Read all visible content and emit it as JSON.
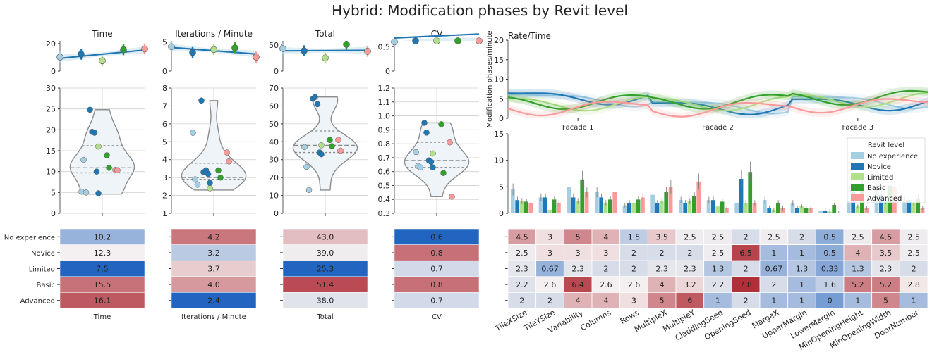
{
  "title": "Hybrid: Modification phases by Revit level",
  "levels": [
    "No experience",
    "Novice",
    "Limited",
    "Basic",
    "Advanced"
  ],
  "level_colors": [
    "#a6cee3",
    "#1f78b4",
    "#b2df8a",
    "#33a02c",
    "#fb9a99"
  ],
  "chart_data": [
    {
      "type": "scatter",
      "panel": "trend",
      "title": "Time",
      "ylim": [
        0,
        22
      ],
      "yticks": [
        "0",
        "20"
      ],
      "means": [
        10.2,
        12.3,
        7.5,
        15.5,
        16.1
      ]
    },
    {
      "type": "scatter",
      "panel": "trend",
      "title": "Iterations / Minute",
      "ylim": [
        0,
        5.2
      ],
      "yticks": [
        "0",
        "5"
      ],
      "means": [
        4.2,
        3.2,
        3.7,
        4.0,
        2.4
      ]
    },
    {
      "type": "scatter",
      "panel": "trend",
      "title": "Total",
      "ylim": [
        0,
        58
      ],
      "yticks": [
        "0",
        "50"
      ],
      "means": [
        43.0,
        39.0,
        25.3,
        51.4,
        38.0
      ]
    },
    {
      "type": "scatter",
      "panel": "trend",
      "title": "CV",
      "ylim": [
        0,
        0.62
      ],
      "yticks": [
        "0",
        "0.5"
      ],
      "means": [
        0.6,
        0.8,
        0.7,
        0.8,
        0.7
      ]
    },
    {
      "type": "scatter",
      "panel": "violin",
      "title": "Time",
      "ylim": [
        0,
        30
      ],
      "yticks": [
        "0",
        "5",
        "10",
        "15",
        "20",
        "25",
        "30"
      ],
      "points": [
        {
          "level": 0,
          "values": [
            5.2,
            12.8,
            5.0
          ]
        },
        {
          "level": 1,
          "values": [
            24.8,
            19.5,
            19.3,
            10.0,
            4.8
          ]
        },
        {
          "level": 2,
          "values": [
            16.0
          ]
        },
        {
          "level": 3,
          "values": [
            13.9,
            10.9
          ]
        },
        {
          "level": 4,
          "values": [
            10.4,
            10.3
          ]
        }
      ],
      "violin_range": [
        4.6,
        24.8
      ],
      "quartiles": [
        9.7,
        10.9,
        16.2
      ]
    },
    {
      "type": "scatter",
      "panel": "violin",
      "title": "Iterations / Minute",
      "ylim": [
        1,
        8
      ],
      "yticks": [
        "1",
        "2",
        "3",
        "4",
        "5",
        "6",
        "7",
        "8"
      ],
      "points": [
        {
          "level": 0,
          "values": [
            5.5,
            2.9,
            2.6
          ]
        },
        {
          "level": 1,
          "values": [
            7.3,
            3.3,
            3.4,
            3.2,
            2.7
          ]
        },
        {
          "level": 2,
          "values": [
            2.4
          ]
        },
        {
          "level": 3,
          "values": [
            3.4,
            3.0
          ]
        },
        {
          "level": 4,
          "values": [
            4.4,
            3.9
          ]
        }
      ],
      "violin_range": [
        2.3,
        7.3
      ],
      "quartiles": [
        2.9,
        3.0,
        3.8
      ]
    },
    {
      "type": "scatter",
      "panel": "violin",
      "title": "Total",
      "ylim": [
        0,
        70
      ],
      "yticks": [
        "0",
        "10",
        "20",
        "30",
        "40",
        "50",
        "60",
        "70"
      ],
      "points": [
        {
          "level": 0,
          "values": [
            37.0,
            26.0,
            13.0
          ]
        },
        {
          "level": 1,
          "values": [
            64.0,
            65.0,
            61.0,
            34.0,
            33.0
          ]
        },
        {
          "level": 2,
          "values": [
            38.0
          ]
        },
        {
          "level": 3,
          "values": [
            41.0,
            37.5
          ]
        },
        {
          "level": 4,
          "values": [
            41.0,
            35.0
          ]
        }
      ],
      "violin_range": [
        13.0,
        65.0
      ],
      "quartiles": [
        34.0,
        38.0,
        46.0
      ]
    },
    {
      "type": "scatter",
      "panel": "violin",
      "title": "CV",
      "ylim": [
        0.3,
        1.2
      ],
      "yticks": [
        "0.3",
        "0.4",
        "0.5",
        "0.6",
        "0.7",
        "0.8",
        "0.9",
        "1.0",
        "1.1",
        "1.2"
      ],
      "points": [
        {
          "level": 0,
          "values": [
            0.74,
            0.64,
            0.63
          ]
        },
        {
          "level": 1,
          "values": [
            0.95,
            0.88,
            0.68,
            0.67,
            0.63
          ]
        },
        {
          "level": 2,
          "values": [
            0.73
          ]
        },
        {
          "level": 3,
          "values": [
            0.94,
            0.59
          ]
        },
        {
          "level": 4,
          "values": [
            0.81,
            0.42
          ]
        }
      ],
      "violin_range": [
        0.42,
        0.95
      ],
      "quartiles": [
        0.63,
        0.68,
        0.81
      ]
    },
    {
      "type": "heatmap",
      "panel": "metric_heatmap",
      "columns": [
        "Time",
        "Iterations / Minute",
        "Total",
        "CV"
      ],
      "rows": [
        "No experience",
        "Novice",
        "Limited",
        "Basic",
        "Advanced"
      ],
      "values": [
        [
          "10.2",
          "4.2",
          "43.0",
          "0.6"
        ],
        [
          "12.3",
          "3.2",
          "39.0",
          "0.8"
        ],
        [
          "7.5",
          "3.7",
          "25.3",
          "0.7"
        ],
        [
          "15.5",
          "4.0",
          "51.4",
          "0.8"
        ],
        [
          "16.1",
          "2.4",
          "38.0",
          "0.7"
        ]
      ]
    },
    {
      "type": "line",
      "panel": "rate_time",
      "title": "Rate/Time",
      "ylabel": "Modification phases/minute",
      "ylim": [
        0,
        20
      ],
      "yticks": [
        "0",
        "5",
        "10",
        "15",
        "20"
      ],
      "categories": [
        "Facade 1",
        "Facade 2",
        "Facade 3"
      ]
    },
    {
      "type": "bar",
      "panel": "parameter_bars",
      "ylim": [
        0,
        15
      ],
      "yticks": [
        "0",
        "5",
        "10",
        "15"
      ],
      "legend_title": "Revit level",
      "legend_position": "upper-right",
      "categories": [
        "TileXSize",
        "TileYSize",
        "Variability",
        "Columns",
        "Rows",
        "MultipleX",
        "MultipleY",
        "CladdingSeed",
        "OpeningSeed",
        "MargeX",
        "UpperMargin",
        "LowerMargin",
        "MinOpeningHeight",
        "MinOpeningWidth",
        "DoorNumber"
      ],
      "series": [
        {
          "name": "No experience",
          "values": [
            4.5,
            3,
            5,
            4,
            1.5,
            3.5,
            2.5,
            2.5,
            2,
            2.5,
            2,
            0.5,
            2.5,
            4.5,
            2.5
          ]
        },
        {
          "name": "Novice",
          "values": [
            2.5,
            3,
            3,
            3,
            2,
            2,
            2,
            2.5,
            6.5,
            1,
            1,
            0.5,
            4,
            3.5,
            2.5
          ]
        },
        {
          "name": "Limited",
          "values": [
            2.3,
            0.67,
            2.3,
            2,
            2,
            2.3,
            2.3,
            1.3,
            2,
            0.67,
            1.3,
            0.33,
            1.3,
            2.3,
            2
          ]
        },
        {
          "name": "Basic",
          "values": [
            2.2,
            2.6,
            6.4,
            2.6,
            2.6,
            4,
            3.2,
            2.2,
            7.8,
            2,
            1,
            1.6,
            5.2,
            5.2,
            2.8
          ]
        },
        {
          "name": "Advanced",
          "values": [
            2,
            2,
            4,
            4,
            3,
            5,
            6,
            1,
            2,
            1,
            1,
            0,
            1,
            5,
            1
          ]
        }
      ]
    },
    {
      "type": "heatmap",
      "panel": "parameter_heatmap",
      "columns": [
        "TileXSize",
        "TileYSize",
        "Variability",
        "Columns",
        "Rows",
        "MultipleX",
        "MultipleY",
        "CladdingSeed",
        "OpeningSeed",
        "MargeX",
        "UpperMargin",
        "LowerMargin",
        "MinOpeningHeight",
        "MinOpeningWidth",
        "DoorNumber"
      ],
      "values": [
        [
          "4.5",
          "3",
          "5",
          "4",
          "1.5",
          "3.5",
          "2.5",
          "2.5",
          "2",
          "2.5",
          "2",
          "0.5",
          "2.5",
          "4.5",
          "2.5"
        ],
        [
          "2.5",
          "3",
          "3",
          "3",
          "2",
          "2",
          "2",
          "2.5",
          "6.5",
          "1",
          "1",
          "0.5",
          "4",
          "3.5",
          "2.5"
        ],
        [
          "2.3",
          "0.67",
          "2.3",
          "2",
          "2",
          "2.3",
          "2.3",
          "1.3",
          "2",
          "0.67",
          "1.3",
          "0.33",
          "1.3",
          "2.3",
          "2"
        ],
        [
          "2.2",
          "2.6",
          "6.4",
          "2.6",
          "2.6",
          "4",
          "3.2",
          "2.2",
          "7.8",
          "2",
          "1",
          "1.6",
          "5.2",
          "5.2",
          "2.8"
        ],
        [
          "2",
          "2",
          "4",
          "4",
          "3",
          "5",
          "6",
          "1",
          "2",
          "1",
          "1",
          "0",
          "1",
          "5",
          "1"
        ]
      ]
    }
  ]
}
